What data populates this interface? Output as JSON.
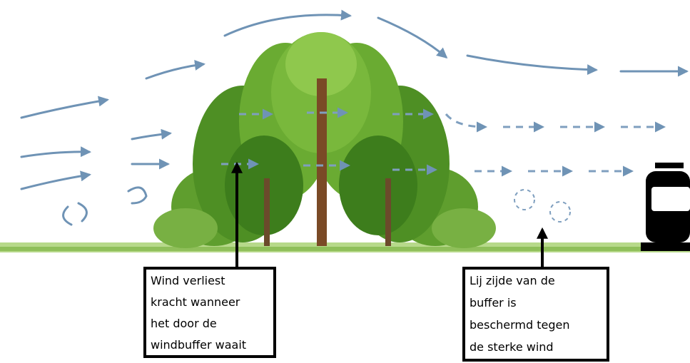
{
  "callouts": [
    {
      "lines": [
        "Wind verliest",
        "kracht wanneer",
        "het door de",
        "windbuffer waait"
      ]
    },
    {
      "lines": [
        "Lij zijde van de",
        "buffer is",
        "beschermd tegen",
        "de sterke wind"
      ]
    }
  ]
}
